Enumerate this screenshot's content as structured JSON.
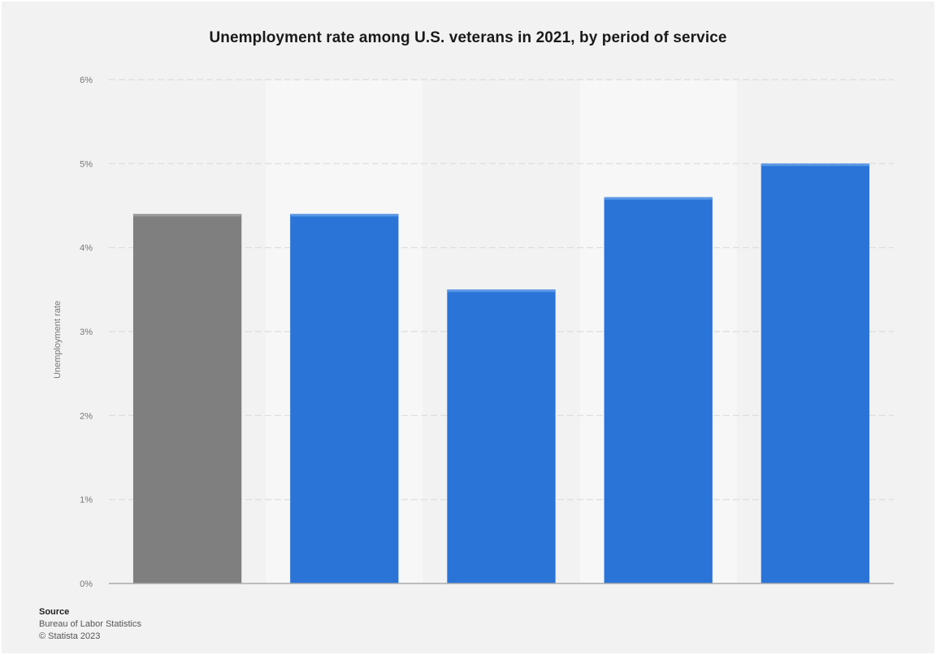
{
  "chart_data": {
    "type": "bar",
    "title": "Unemployment rate among U.S. veterans in 2021, by period of service",
    "ylabel": "Unemployment rate",
    "xlabel": "",
    "ylim": [
      0,
      6
    ],
    "yticks": [
      "0%",
      "1%",
      "2%",
      "3%",
      "4%",
      "5%",
      "6%"
    ],
    "categories": [
      "",
      "",
      "",
      "",
      ""
    ],
    "values": [
      4.4,
      4.4,
      3.5,
      4.6,
      5.0
    ],
    "colors": [
      "#7f7f7f",
      "#2a74d8",
      "#2a74d8",
      "#2a74d8",
      "#2a74d8"
    ],
    "grid": true,
    "legend": "none"
  },
  "footer": {
    "source_label": "Source",
    "source_name": "Bureau of Labor Statistics",
    "copyright": "© Statista 2023"
  }
}
